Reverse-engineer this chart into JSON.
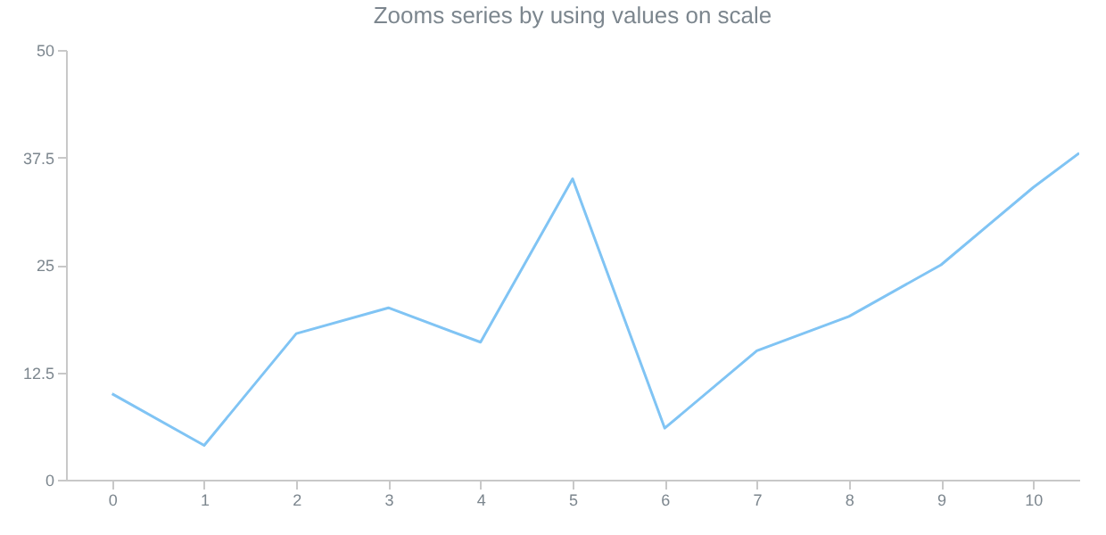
{
  "chart_data": {
    "type": "line",
    "title": "Zooms series by using values on scale",
    "x": [
      0,
      1,
      2,
      3,
      4,
      5,
      6,
      7,
      8,
      9,
      10,
      10.5
    ],
    "series": [
      {
        "color": "#80c4f4",
        "values": [
          10,
          4,
          17,
          20,
          16,
          35,
          6,
          15,
          19,
          25,
          34,
          38
        ]
      }
    ],
    "xlim": [
      -0.5,
      10.5
    ],
    "xticks": [
      0,
      1,
      2,
      3,
      4,
      5,
      6,
      7,
      8,
      9,
      10
    ],
    "ylim": [
      0,
      50
    ],
    "yticks": [
      0,
      12.5,
      25,
      37.5,
      50
    ],
    "grid": false,
    "marker": "none",
    "line_style": "solid"
  }
}
